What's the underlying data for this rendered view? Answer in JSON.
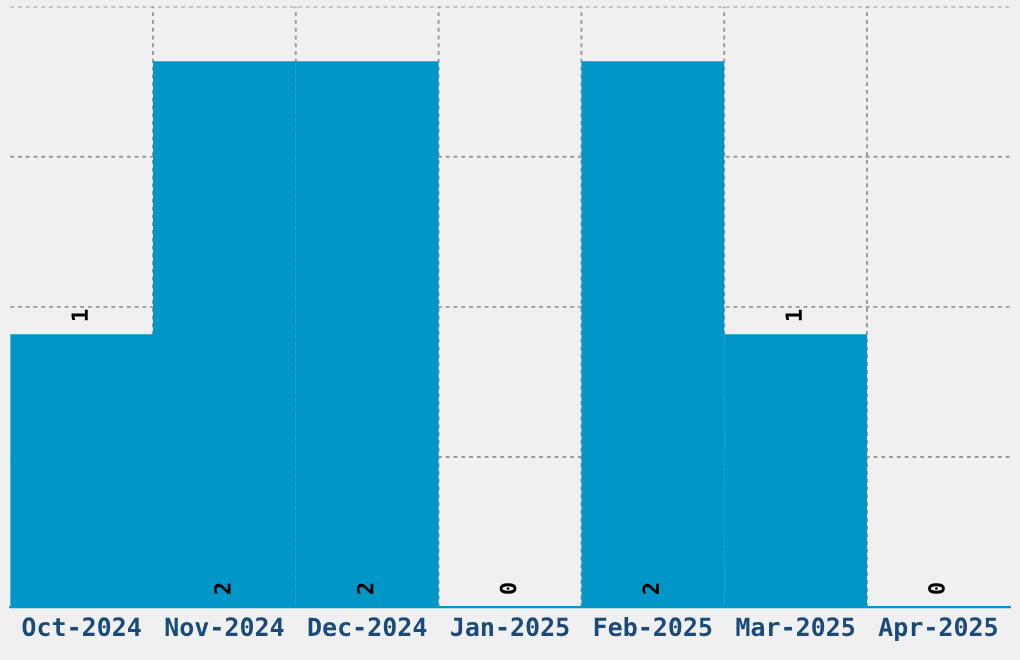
{
  "chart_data": {
    "type": "bar",
    "categories": [
      "Oct-2024",
      "Nov-2024",
      "Dec-2024",
      "Jan-2025",
      "Feb-2025",
      "Mar-2025",
      "Apr-2025"
    ],
    "values": [
      1,
      2,
      2,
      0,
      2,
      1,
      0
    ],
    "color": "#0096c8",
    "ylim": [
      0,
      2.2
    ],
    "yticks": [
      {
        "value": 0.55,
        "label": null
      },
      {
        "value": 1.1,
        "label": null
      },
      {
        "value": 1.65,
        "label": null
      },
      {
        "value": 2.2,
        "label": null
      }
    ],
    "tick_labels": "x",
    "data_labels": true,
    "grid": true,
    "legend": false
  }
}
